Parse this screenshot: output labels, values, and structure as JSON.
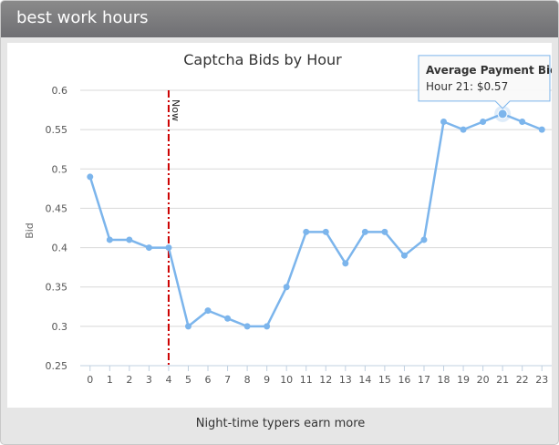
{
  "widget": {
    "header_title": "best work hours",
    "footer_text": "Night-time typers earn more"
  },
  "chart_data": {
    "type": "line",
    "title": "Captcha Bids by Hour",
    "xlabel": "",
    "ylabel": "Bid",
    "categories": [
      "0",
      "1",
      "2",
      "3",
      "4",
      "5",
      "6",
      "7",
      "8",
      "9",
      "10",
      "11",
      "12",
      "13",
      "14",
      "15",
      "16",
      "17",
      "18",
      "19",
      "20",
      "21",
      "22",
      "23"
    ],
    "series": [
      {
        "name": "Average Payment Bid",
        "values": [
          0.49,
          0.41,
          0.41,
          0.4,
          0.4,
          0.3,
          0.32,
          0.31,
          0.3,
          0.3,
          0.35,
          0.42,
          0.42,
          0.38,
          0.42,
          0.42,
          0.39,
          0.41,
          0.56,
          0.55,
          0.56,
          0.57,
          0.56,
          0.55
        ]
      }
    ],
    "ylim": [
      0.25,
      0.6
    ],
    "yticks": [
      "0.25",
      "0.3",
      "0.35",
      "0.4",
      "0.45",
      "0.5",
      "0.55",
      "0.6"
    ],
    "grid": true,
    "legend": "none",
    "plot_line": {
      "label": "Now",
      "x": 4,
      "color": "#cc0000"
    },
    "tooltip": {
      "title": "Average Payment Bid",
      "text": "Hour 21: $0.57",
      "hour": 21
    },
    "colors": {
      "series": "#7cb5ec",
      "grid": "#d8d8d8"
    }
  }
}
